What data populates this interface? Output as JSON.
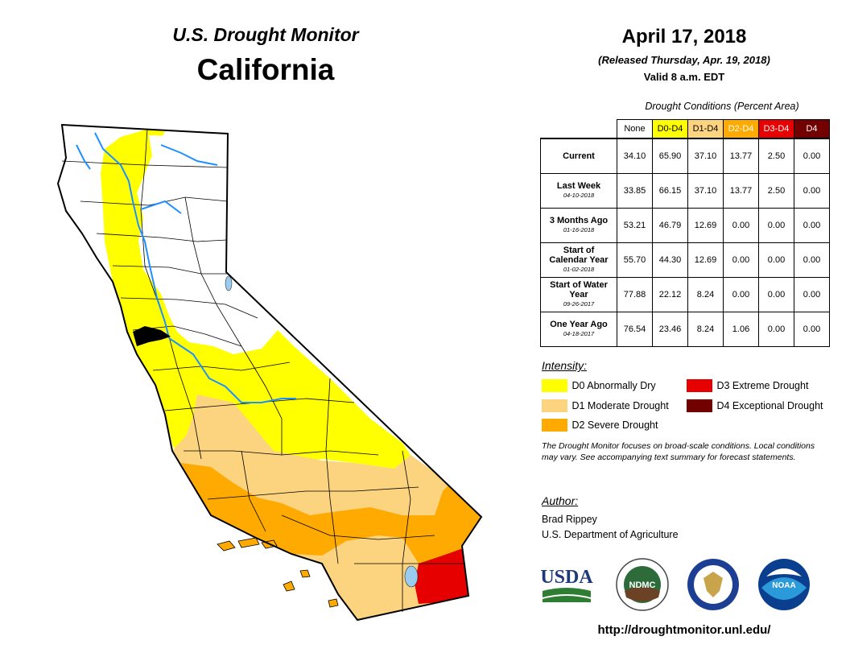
{
  "header": {
    "monitor": "U.S. Drought Monitor",
    "state": "California",
    "date": "April 17, 2018",
    "released": "(Released Thursday, Apr. 19, 2018)",
    "valid": "Valid 8 a.m. EDT"
  },
  "table": {
    "caption": "Drought Conditions (Percent Area)",
    "columns": [
      {
        "label": "None",
        "color": "#ffffff",
        "text_color": "#000000"
      },
      {
        "label": "D0-D4",
        "color": "#ffff00",
        "text_color": "#000000"
      },
      {
        "label": "D1-D4",
        "color": "#fcd37f",
        "text_color": "#000000"
      },
      {
        "label": "D2-D4",
        "color": "#ffaa00",
        "text_color": "#ffffff"
      },
      {
        "label": "D3-D4",
        "color": "#e60000",
        "text_color": "#ffffff"
      },
      {
        "label": "D4",
        "color": "#730000",
        "text_color": "#ffffff"
      }
    ],
    "rows": [
      {
        "label": "Current",
        "date": "",
        "values": [
          "34.10",
          "65.90",
          "37.10",
          "13.77",
          "2.50",
          "0.00"
        ]
      },
      {
        "label": "Last Week",
        "date": "04-10-2018",
        "values": [
          "33.85",
          "66.15",
          "37.10",
          "13.77",
          "2.50",
          "0.00"
        ]
      },
      {
        "label": "3 Months Ago",
        "date": "01-16-2018",
        "values": [
          "53.21",
          "46.79",
          "12.69",
          "0.00",
          "0.00",
          "0.00"
        ]
      },
      {
        "label": "Start of Calendar Year",
        "date": "01-02-2018",
        "values": [
          "55.70",
          "44.30",
          "12.69",
          "0.00",
          "0.00",
          "0.00"
        ]
      },
      {
        "label": "Start of Water Year",
        "date": "09-26-2017",
        "values": [
          "77.88",
          "22.12",
          "8.24",
          "0.00",
          "0.00",
          "0.00"
        ]
      },
      {
        "label": "One Year Ago",
        "date": "04-18-2017",
        "values": [
          "76.54",
          "23.46",
          "8.24",
          "1.06",
          "0.00",
          "0.00"
        ]
      }
    ]
  },
  "legend": {
    "title": "Intensity:",
    "items": [
      {
        "label": "D0 Abnormally Dry",
        "color": "#ffff00"
      },
      {
        "label": "D1 Moderate Drought",
        "color": "#fcd37f"
      },
      {
        "label": "D2 Severe Drought",
        "color": "#ffaa00"
      },
      {
        "label": "D3 Extreme Drought",
        "color": "#e60000"
      },
      {
        "label": "D4 Exceptional Drought",
        "color": "#730000"
      }
    ]
  },
  "note": "The Drought Monitor focuses on broad-scale conditions. Local conditions may vary. See accompanying text summary for forecast statements.",
  "author": {
    "title": "Author:",
    "name": "Brad Rippey",
    "org": "U.S. Department of Agriculture"
  },
  "logos": {
    "usda": "USDA",
    "ndmc": "NDMC",
    "noaa": "NOAA"
  },
  "url": "http://droughtmonitor.unl.edu/",
  "colors": {
    "none": "#ffffff",
    "d0": "#ffff00",
    "d1": "#fcd37f",
    "d2": "#ffaa00",
    "d3": "#e60000",
    "d4": "#730000",
    "water": "#1e90ff",
    "lake": "#99ccee"
  }
}
